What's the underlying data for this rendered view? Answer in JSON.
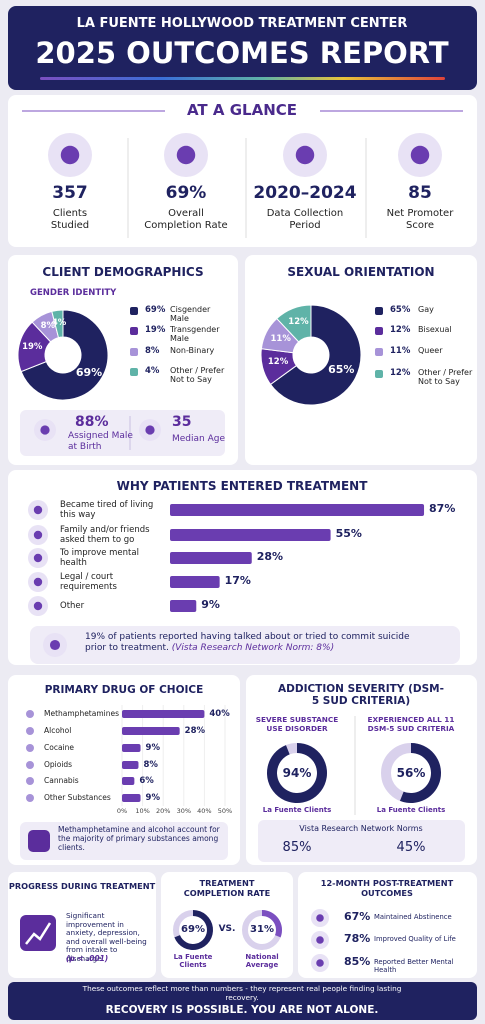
{
  "header": {
    "org": "LA FUENTE HOLLYWOOD TREATMENT CENTER",
    "title": "2025 OUTCOMES REPORT"
  },
  "at_a_glance": {
    "title": "AT A GLANCE",
    "stats": [
      {
        "value": "357",
        "label": "Clients Studied"
      },
      {
        "value": "69%",
        "label": "Overall Completion Rate"
      },
      {
        "value": "2020–2024",
        "label": "Data Collection Period"
      },
      {
        "value": "85",
        "label": "Net Promoter Score"
      }
    ]
  },
  "demographics": {
    "type": "pie",
    "title": "CLIENT DEMOGRAPHICS",
    "subtitle": "GENDER IDENTITY",
    "categories": [
      "Cisgender Male",
      "Transgender Male",
      "Non-Binary",
      "Other / Prefer Not to Say"
    ],
    "values": [
      69,
      19,
      8,
      4
    ],
    "value_labels": [
      "69%",
      "19%",
      "8%",
      "4%"
    ],
    "colors": [
      "#1f2260",
      "#5b2d9c",
      "#a793d8",
      "#5fb3a8"
    ],
    "facts": [
      {
        "value": "88%",
        "label": "Assigned Male at Birth"
      },
      {
        "value": "35",
        "label": "Median Age"
      }
    ]
  },
  "orientation": {
    "type": "pie",
    "title": "SEXUAL ORIENTATION",
    "categories": [
      "Gay",
      "Bisexual",
      "Queer",
      "Other / Prefer Not to Say"
    ],
    "values": [
      65,
      12,
      11,
      12
    ],
    "value_labels": [
      "65%",
      "12%",
      "11%",
      "12%"
    ],
    "colors": [
      "#1f2260",
      "#5b2d9c",
      "#a793d8",
      "#5fb3a8"
    ]
  },
  "reasons": {
    "type": "bar",
    "title": "WHY PATIENTS ENTERED TREATMENT",
    "categories": [
      "Became tired of living this way",
      "Family and/or friends asked them to go",
      "To improve mental health",
      "Legal / court requirements",
      "Other"
    ],
    "values": [
      87,
      55,
      28,
      17,
      9
    ],
    "value_labels": [
      "87%",
      "55%",
      "28%",
      "17%",
      "9%"
    ],
    "xlim": [
      0,
      100
    ],
    "color": "#6a3db0",
    "note": "19% of patients reported having talked about or tried to commit suicide prior to treatment.",
    "norm": "(Vista Research Network Norm: 8%)"
  },
  "drugs": {
    "type": "bar",
    "title": "PRIMARY DRUG OF CHOICE",
    "categories": [
      "Methamphetamines",
      "Alcohol",
      "Cocaine",
      "Opioids",
      "Cannabis",
      "Other Substances"
    ],
    "values": [
      40,
      28,
      9,
      8,
      6,
      9
    ],
    "value_labels": [
      "40%",
      "28%",
      "9%",
      "8%",
      "6%",
      "9%"
    ],
    "xlim": [
      0,
      50
    ],
    "color": "#6a3db0",
    "xticks": [
      {
        "value": 0,
        "label": "0%"
      },
      {
        "value": 10,
        "label": "10%"
      },
      {
        "value": 20,
        "label": "20%"
      },
      {
        "value": 30,
        "label": "30%"
      },
      {
        "value": 40,
        "label": "40%"
      },
      {
        "value": 50,
        "label": "50%"
      }
    ],
    "note": "Methamphetamine and alcohol account for the majority of primary substances among clients."
  },
  "severity": {
    "type": "ring",
    "title": "ADDICTION SEVERITY (DSM-5 SUD CRITERIA)",
    "range": [
      0,
      100
    ],
    "items": [
      {
        "label": "SEVERE SUBSTANCE USE DISORDER",
        "value": 94,
        "value_label": "94%",
        "caption": "La Fuente Clients"
      },
      {
        "label": "EXPERIENCED ALL 11 DSM-5 SUD CRITERIA",
        "value": 56,
        "value_label": "56%",
        "caption": "La Fuente Clients"
      }
    ],
    "norms_title": "Vista Research Network Norms",
    "norms": [
      "85%",
      "45%"
    ]
  },
  "progress": {
    "title": "PROGRESS DURING TREATMENT",
    "text": "Significant improvement in anxiety, depression, and overall well-being from intake to discharge.",
    "p": "(p < .001)"
  },
  "completion": {
    "type": "ring",
    "title": "TREATMENT COMPLETION RATE",
    "range": [
      0,
      100
    ],
    "vs": "VS.",
    "items": [
      {
        "value": 69,
        "value_label": "69%",
        "caption": "La Fuente Clients"
      },
      {
        "value": 31,
        "value_label": "31%",
        "caption": "National Average"
      }
    ]
  },
  "post": {
    "title": "12-MONTH POST-TREATMENT OUTCOMES",
    "items": [
      {
        "value": "67%",
        "label": "Maintained Abstinence"
      },
      {
        "value": "78%",
        "label": "Improved Quality of Life"
      },
      {
        "value": "85%",
        "label": "Reported Better Mental Health"
      }
    ]
  },
  "footer": {
    "quote": "These outcomes reflect more than numbers - they represent real people finding lasting recovery.",
    "tagline": "RECOVERY IS POSSIBLE. YOU ARE NOT ALONE."
  }
}
